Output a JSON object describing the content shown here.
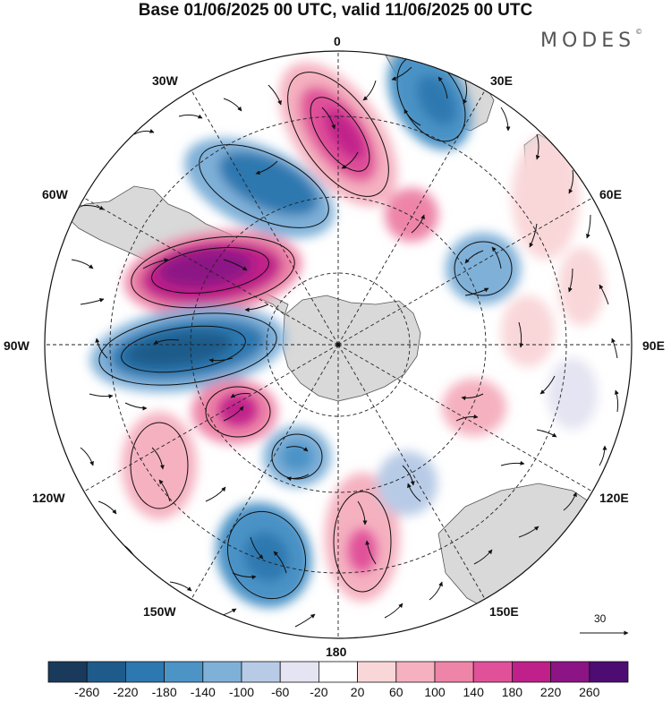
{
  "title": "Base 01/06/2025 00 UTC, valid 11/06/2025 00 UTC",
  "brand": "MODES",
  "brand_mark": "©",
  "map": {
    "projection": "south-polar-stereographic",
    "longitude_labels": {
      "top": "0",
      "top_right": "30E",
      "upper_right": "60E",
      "right": "90E",
      "lower_right": "120E",
      "bottom_right": "150E",
      "bottom": "180",
      "bottom_left": "150W",
      "lower_left": "120W",
      "left": "90W",
      "upper_left": "60W",
      "top_left": "30W"
    },
    "wind_reference_vector": "30",
    "colors": {
      "land": "#d8d8d8",
      "border": "#222222",
      "grid": "#222222"
    }
  },
  "colorbar": {
    "ticks": [
      "-260",
      "-220",
      "-180",
      "-140",
      "-100",
      "-60",
      "-20",
      "20",
      "60",
      "100",
      "140",
      "180",
      "220",
      "260"
    ],
    "colors": [
      "#1a3a5c",
      "#1f5b8a",
      "#2d78b0",
      "#4c93c6",
      "#7fb0d8",
      "#b8cbe6",
      "#e4e4f2",
      "#ffffff",
      "#f9d7d9",
      "#f5b1c0",
      "#ee85a8",
      "#e0519a",
      "#c0208a",
      "#8c1485",
      "#4c0c72"
    ]
  }
}
